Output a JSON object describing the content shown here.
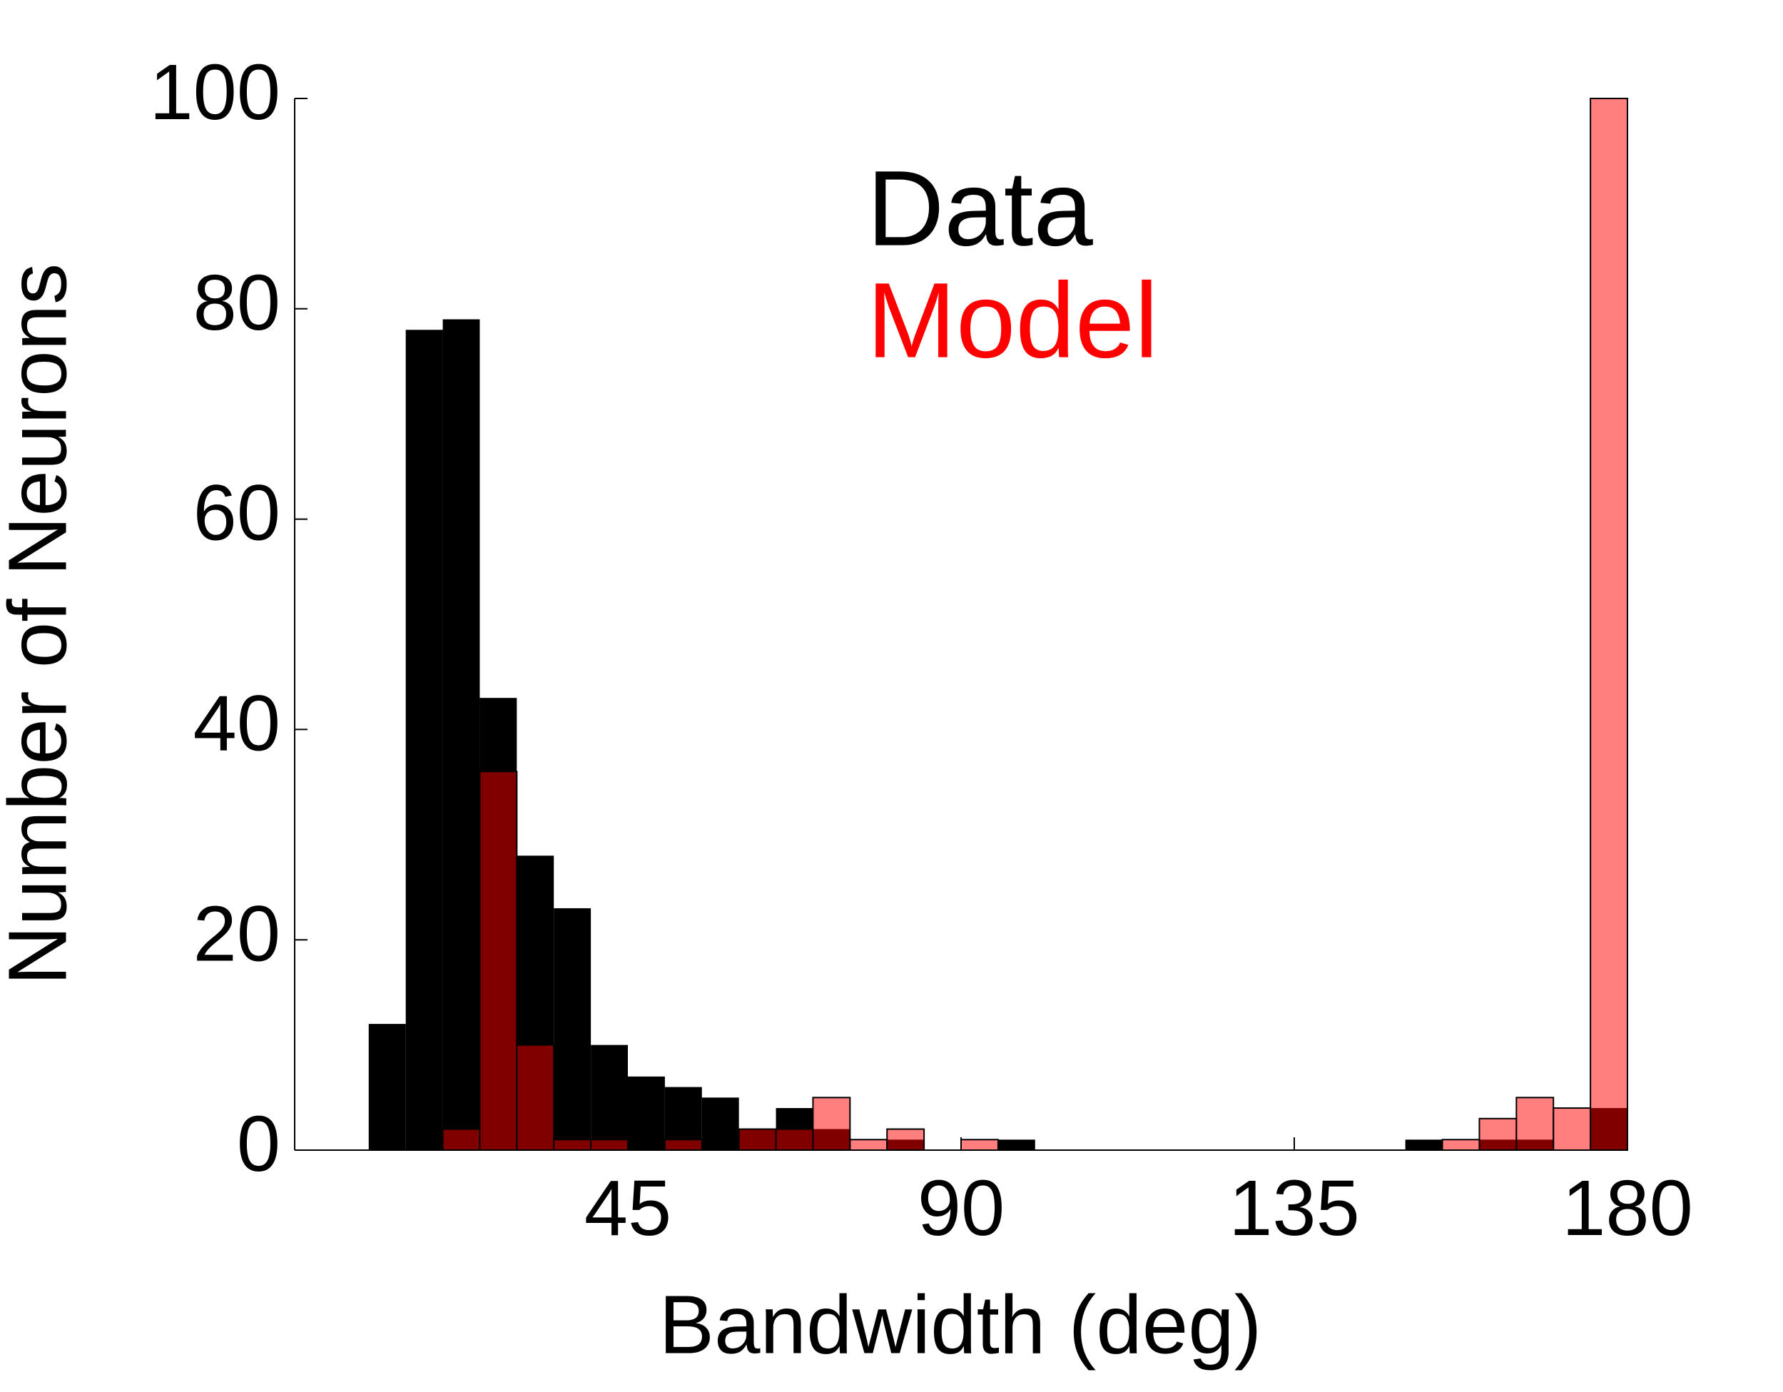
{
  "chart_data": {
    "type": "histogram",
    "xlabel": "Bandwidth (deg)",
    "ylabel": "Number of Neurons",
    "bins": [
      10,
      15,
      20,
      25,
      30,
      35,
      40,
      45,
      50,
      55,
      60,
      65,
      70,
      75,
      80,
      85,
      90,
      95,
      100,
      105,
      110,
      115,
      120,
      125,
      130,
      135,
      140,
      145,
      150,
      155,
      160,
      165,
      170,
      175,
      180
    ],
    "series": [
      {
        "name": "Data",
        "color": "#000000",
        "opacity": 1,
        "values": [
          12,
          78,
          79,
          43,
          28,
          23,
          10,
          7,
          6,
          5,
          2,
          4,
          2,
          0,
          1,
          0,
          0,
          1,
          0,
          0,
          0,
          0,
          0,
          0,
          0,
          0,
          0,
          0,
          1,
          0,
          1,
          1,
          0,
          4
        ]
      },
      {
        "name": "Model",
        "color": "#ff0000",
        "opacity": 0.5,
        "values": [
          0,
          0,
          2,
          36,
          10,
          1,
          1,
          0,
          1,
          0,
          2,
          2,
          5,
          1,
          2,
          0,
          1,
          0,
          0,
          0,
          0,
          0,
          0,
          0,
          0,
          0,
          0,
          0,
          0,
          1,
          3,
          5,
          4,
          100
        ]
      }
    ],
    "xlim": [
      0,
      180
    ],
    "xticks": [
      45,
      90,
      135,
      180
    ],
    "ylim": [
      0,
      100
    ],
    "yticks": [
      0,
      20,
      40,
      60,
      80,
      100
    ]
  }
}
